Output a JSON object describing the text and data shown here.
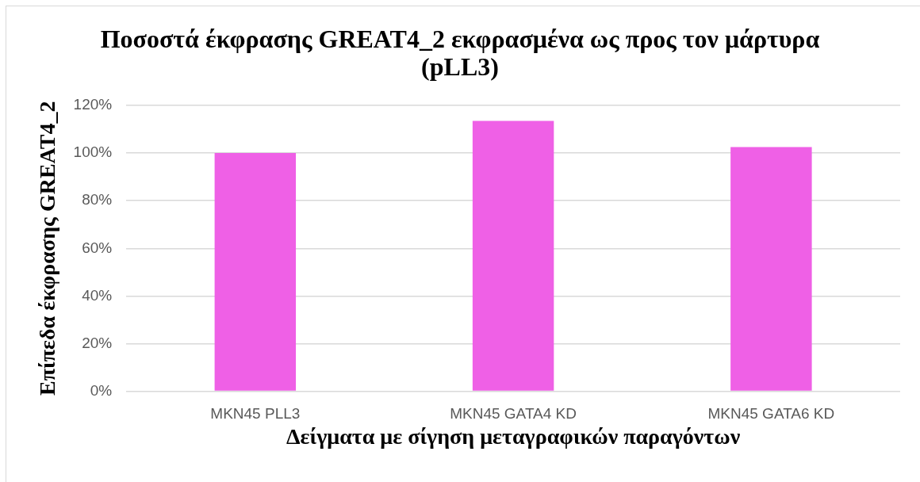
{
  "chart_data": {
    "type": "bar",
    "title": "Ποσοστά έκφρασης GREAT4_2 εκφρασμένα ως προς τον μάρτυρα (pLL3)",
    "xlabel": "Δείγματα με σίγηση μεταγραφικών παραγόντων",
    "ylabel": "Επίπεδα έκφρασης GREAT4_2",
    "categories": [
      "MKN45 PLL3",
      "MKN45 GATA4 KD",
      "MKN45 GATA6 KD"
    ],
    "values": [
      100,
      113.5,
      102.5
    ],
    "color": "#ef60e6",
    "ylim": [
      0,
      120
    ],
    "yticks": [
      {
        "value": 0,
        "label": "0%"
      },
      {
        "value": 20,
        "label": "20%"
      },
      {
        "value": 40,
        "label": "40%"
      },
      {
        "value": 60,
        "label": "60%"
      },
      {
        "value": 80,
        "label": "80%"
      },
      {
        "value": 100,
        "label": "100%"
      },
      {
        "value": 120,
        "label": "120%"
      }
    ],
    "grid": "y"
  }
}
